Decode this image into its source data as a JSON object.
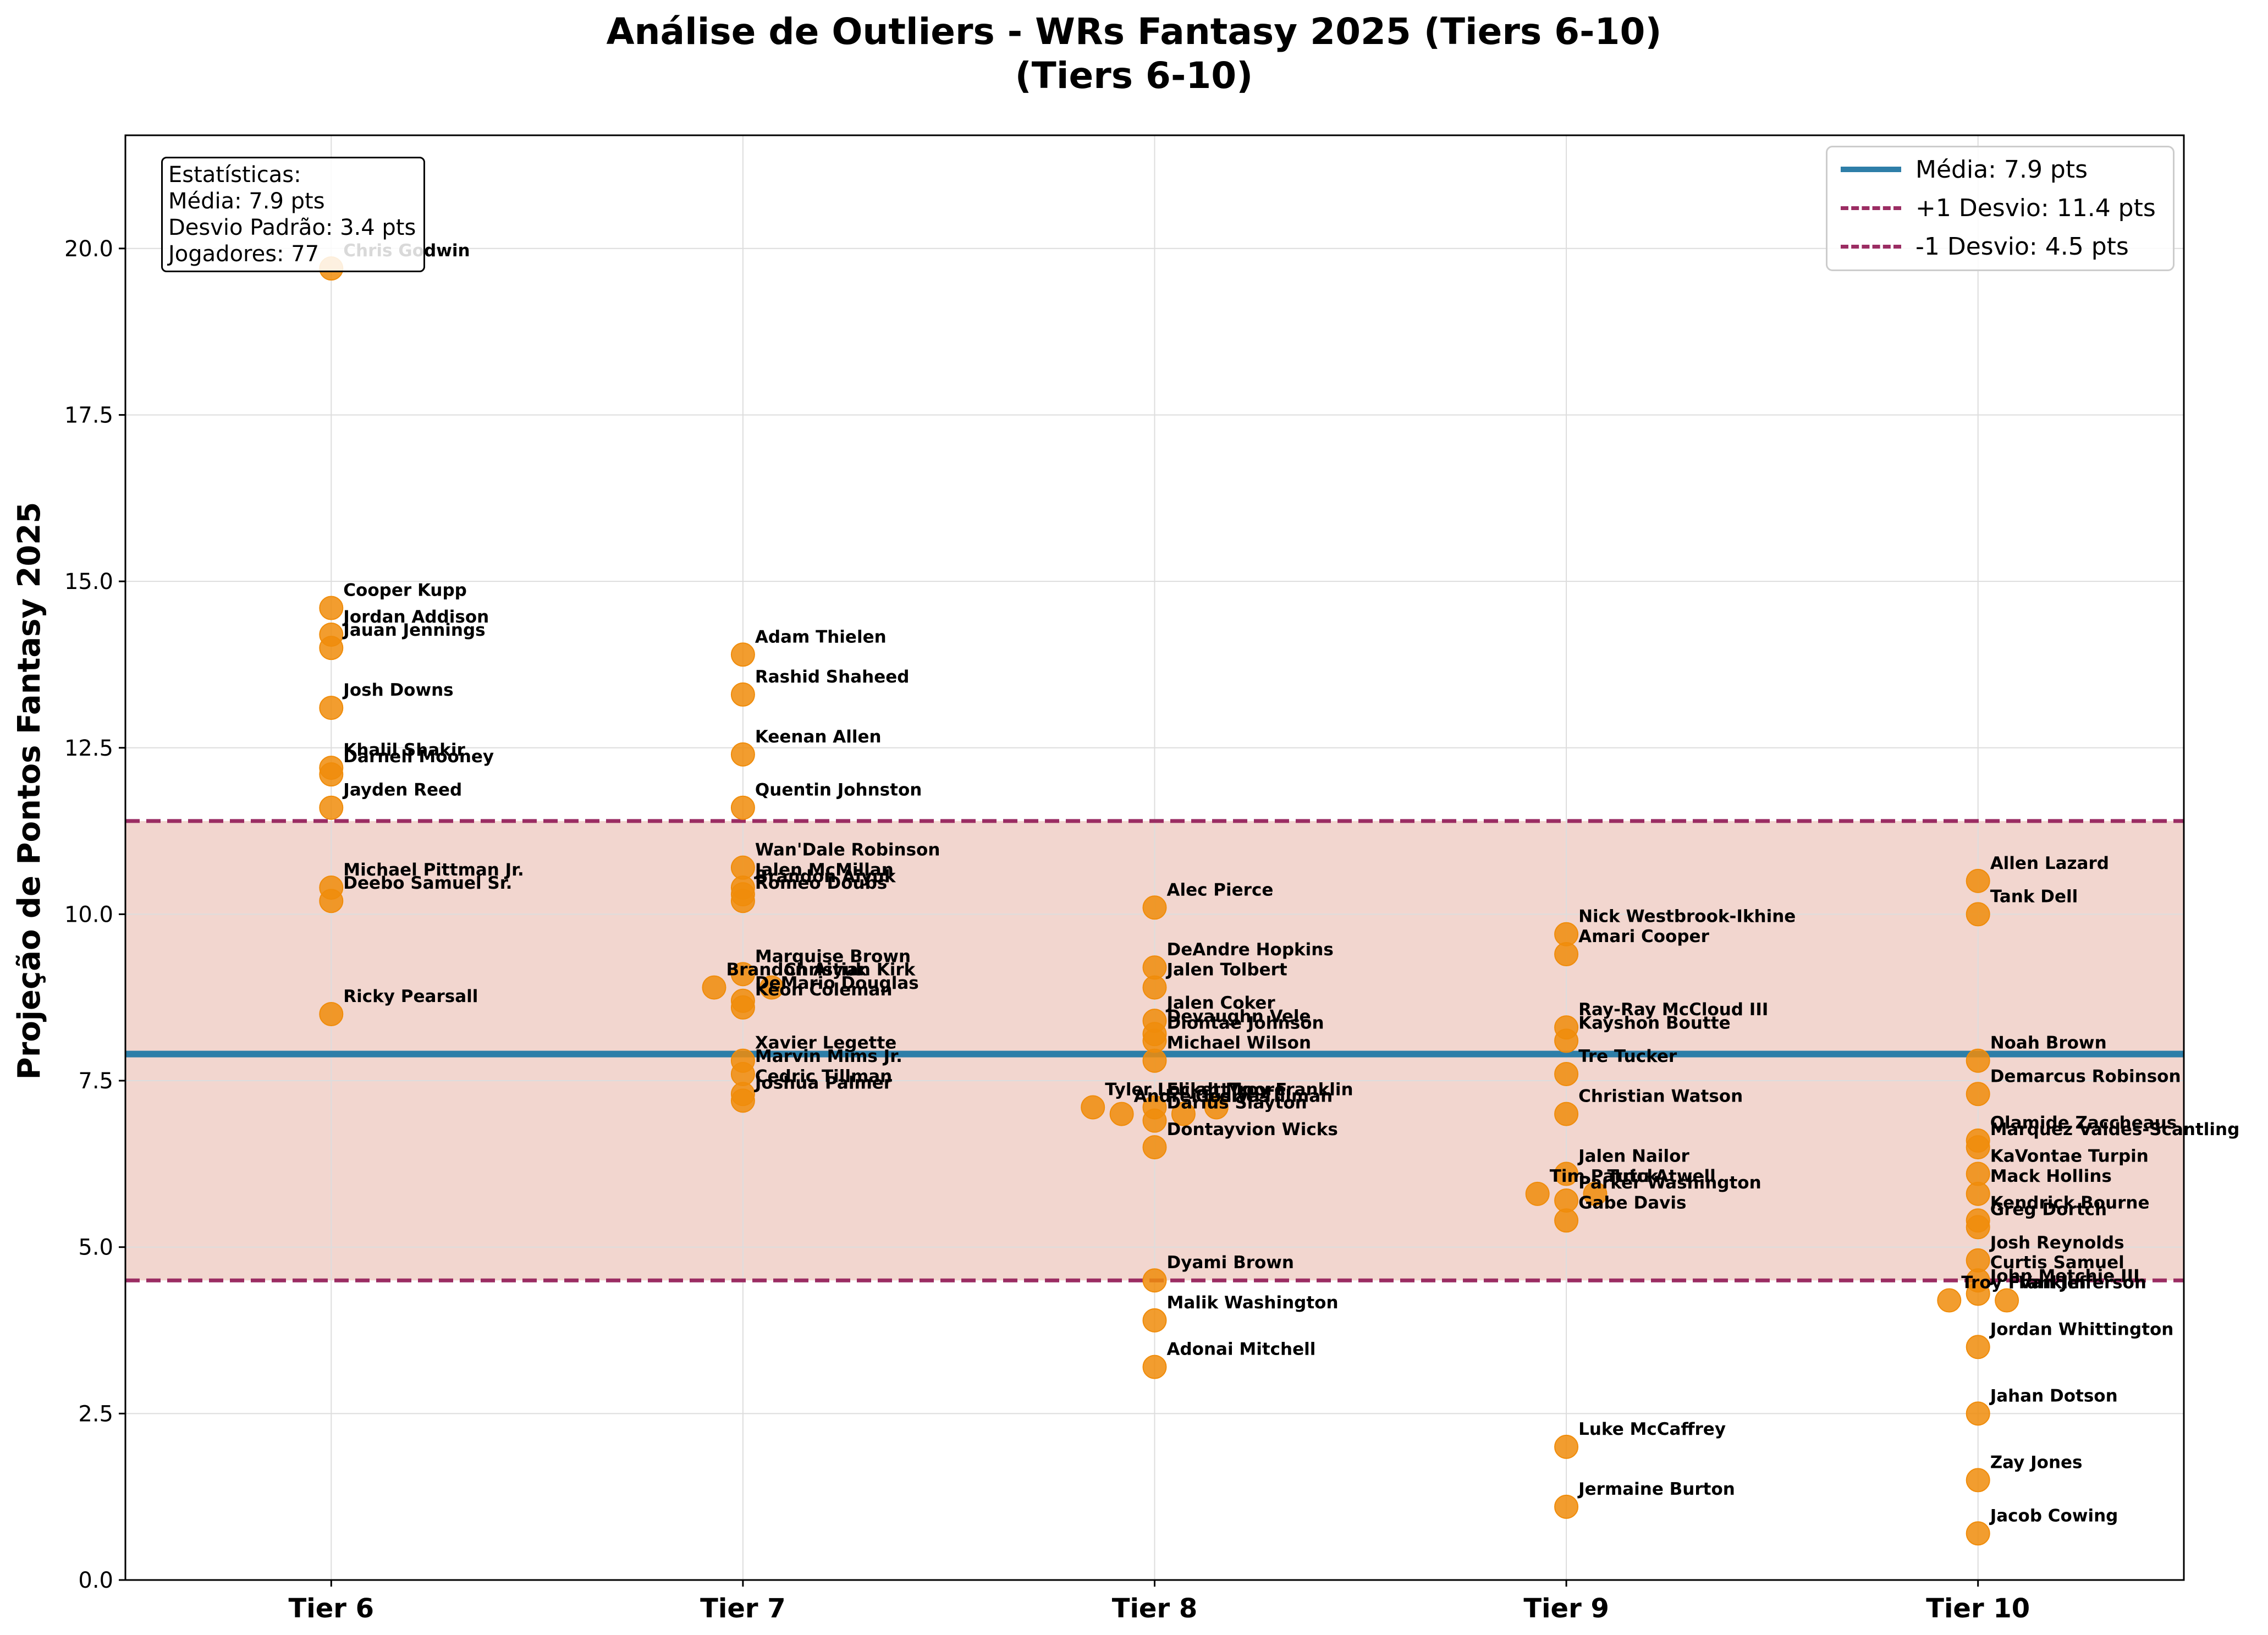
{
  "chart_data": {
    "type": "scatter",
    "title_line1": "Análise de Outliers - WRs Fantasy 2025 (Tiers 6-10)",
    "title_line2": "(Tiers 6-10)",
    "xlabel": "",
    "ylabel": "Projeção de Pontos Fantasy 2025",
    "categories": [
      "Tier 6",
      "Tier 7",
      "Tier 8",
      "Tier 9",
      "Tier 10"
    ],
    "ylim": [
      0,
      21.7
    ],
    "yticks": [
      "0.0",
      "2.5",
      "5.0",
      "7.5",
      "10.0",
      "12.5",
      "15.0",
      "17.5",
      "20.0"
    ],
    "grid": true,
    "legend_position": "top-right",
    "colors": {
      "points": "#f08c0a",
      "mean_line": "#2e7ea8",
      "sd_lines": "#9b2d63",
      "band": "#e8b4a8"
    },
    "reference_lines": {
      "mean": 7.9,
      "plus_1sd": 11.4,
      "minus_1sd": 4.5
    },
    "legend": [
      "Média: 7.9 pts",
      "+1 Desvio: 11.4 pts",
      "-1 Desvio: 4.5 pts"
    ],
    "stats": {
      "heading": "Estatísticas:",
      "mean": "Média: 7.9 pts",
      "sd": "Desvio Padrão: 3.4 pts",
      "players": "Jogadores: 77"
    },
    "points": [
      {
        "tier": 6,
        "x": 6,
        "y": 19.7,
        "name": "Chris Godwin"
      },
      {
        "tier": 6,
        "x": 6,
        "y": 14.6,
        "name": "Cooper Kupp"
      },
      {
        "tier": 6,
        "x": 6,
        "y": 14.2,
        "name": "Jordan Addison"
      },
      {
        "tier": 6,
        "x": 6,
        "y": 14.0,
        "name": "Jauan Jennings"
      },
      {
        "tier": 6,
        "x": 6,
        "y": 13.1,
        "name": "Josh Downs"
      },
      {
        "tier": 6,
        "x": 6,
        "y": 12.2,
        "name": "Khalil Shakir"
      },
      {
        "tier": 6,
        "x": 6,
        "y": 12.1,
        "name": "Darnell Mooney"
      },
      {
        "tier": 6,
        "x": 6,
        "y": 11.6,
        "name": "Jayden Reed"
      },
      {
        "tier": 6,
        "x": 6,
        "y": 10.4,
        "name": "Michael Pittman Jr."
      },
      {
        "tier": 6,
        "x": 6,
        "y": 10.2,
        "name": "Deebo Samuel Sr."
      },
      {
        "tier": 6,
        "x": 6,
        "y": 8.5,
        "name": "Ricky Pearsall"
      },
      {
        "tier": 7,
        "x": 7,
        "y": 13.9,
        "name": "Adam Thielen"
      },
      {
        "tier": 7,
        "x": 7,
        "y": 13.3,
        "name": "Rashid Shaheed"
      },
      {
        "tier": 7,
        "x": 7,
        "y": 12.4,
        "name": "Keenan Allen"
      },
      {
        "tier": 7,
        "x": 7,
        "y": 11.6,
        "name": "Quentin Johnston"
      },
      {
        "tier": 7,
        "x": 7,
        "y": 10.7,
        "name": "Wan'Dale Robinson"
      },
      {
        "tier": 7,
        "x": 7,
        "y": 10.4,
        "name": "Jalen McMillan"
      },
      {
        "tier": 7,
        "x": 7,
        "y": 10.3,
        "name": "Brandon Aiyuk"
      },
      {
        "tier": 7,
        "x": 7,
        "y": 10.2,
        "name": "Romeo Doubs"
      },
      {
        "tier": 7,
        "x": 7,
        "y": 9.1,
        "name": "Marquise Brown"
      },
      {
        "tier": 7,
        "x": 6.93,
        "y": 8.9,
        "name": "Brandon Aiyuk"
      },
      {
        "tier": 7,
        "x": 7.07,
        "y": 8.9,
        "name": "Christian Kirk"
      },
      {
        "tier": 7,
        "x": 7,
        "y": 8.7,
        "name": "DeMario Douglas"
      },
      {
        "tier": 7,
        "x": 7,
        "y": 8.6,
        "name": "Keon Coleman"
      },
      {
        "tier": 7,
        "x": 7,
        "y": 7.8,
        "name": "Xavier Legette"
      },
      {
        "tier": 7,
        "x": 7,
        "y": 7.6,
        "name": "Marvin Mims Jr."
      },
      {
        "tier": 7,
        "x": 7,
        "y": 7.3,
        "name": "Cedric Tillman"
      },
      {
        "tier": 7,
        "x": 7,
        "y": 7.2,
        "name": "Joshua Palmer"
      },
      {
        "tier": 8,
        "x": 8,
        "y": 10.1,
        "name": "Alec Pierce"
      },
      {
        "tier": 8,
        "x": 8,
        "y": 9.2,
        "name": "DeAndre Hopkins"
      },
      {
        "tier": 8,
        "x": 8,
        "y": 8.9,
        "name": "Jalen Tolbert"
      },
      {
        "tier": 8,
        "x": 8,
        "y": 8.4,
        "name": "Jalen Coker"
      },
      {
        "tier": 8,
        "x": 8,
        "y": 8.2,
        "name": "Devaughn Vele"
      },
      {
        "tier": 8,
        "x": 8,
        "y": 8.1,
        "name": "Diontae Johnson"
      },
      {
        "tier": 8,
        "x": 8,
        "y": 7.8,
        "name": "Michael Wilson"
      },
      {
        "tier": 8,
        "x": 7.85,
        "y": 7.1,
        "name": "Tyler Lockett"
      },
      {
        "tier": 8,
        "x": 7.92,
        "y": 7.0,
        "name": "Andrei Iosivas"
      },
      {
        "tier": 8,
        "x": 8,
        "y": 7.1,
        "name": "Elijah Moore"
      },
      {
        "tier": 8,
        "x": 8.07,
        "y": 7.0,
        "name": "Cedric Tillman"
      },
      {
        "tier": 8,
        "x": 8.15,
        "y": 7.1,
        "name": "Troy Franklin"
      },
      {
        "tier": 8,
        "x": 8,
        "y": 6.9,
        "name": "Darius Slayton"
      },
      {
        "tier": 8,
        "x": 8,
        "y": 6.5,
        "name": "Dontayvion Wicks"
      },
      {
        "tier": 8,
        "x": 8,
        "y": 4.5,
        "name": "Dyami Brown"
      },
      {
        "tier": 8,
        "x": 8,
        "y": 3.9,
        "name": "Malik Washington"
      },
      {
        "tier": 8,
        "x": 8,
        "y": 3.2,
        "name": "Adonai Mitchell"
      },
      {
        "tier": 9,
        "x": 9,
        "y": 9.7,
        "name": "Nick Westbrook-Ikhine"
      },
      {
        "tier": 9,
        "x": 9,
        "y": 9.4,
        "name": "Amari Cooper"
      },
      {
        "tier": 9,
        "x": 9,
        "y": 8.3,
        "name": "Ray-Ray McCloud III"
      },
      {
        "tier": 9,
        "x": 9,
        "y": 8.1,
        "name": "Kayshon Boutte"
      },
      {
        "tier": 9,
        "x": 9,
        "y": 7.6,
        "name": "Tre Tucker"
      },
      {
        "tier": 9,
        "x": 9,
        "y": 7.0,
        "name": "Christian Watson"
      },
      {
        "tier": 9,
        "x": 9,
        "y": 6.1,
        "name": "Jalen Nailor"
      },
      {
        "tier": 9,
        "x": 8.93,
        "y": 5.8,
        "name": "Tim Patrick"
      },
      {
        "tier": 9,
        "x": 9.07,
        "y": 5.8,
        "name": "Tutu Atwell"
      },
      {
        "tier": 9,
        "x": 9,
        "y": 5.7,
        "name": "Parker Washington"
      },
      {
        "tier": 9,
        "x": 9,
        "y": 5.4,
        "name": "Gabe Davis"
      },
      {
        "tier": 9,
        "x": 9,
        "y": 2.0,
        "name": "Luke McCaffrey"
      },
      {
        "tier": 9,
        "x": 9,
        "y": 1.1,
        "name": "Jermaine Burton"
      },
      {
        "tier": 10,
        "x": 10,
        "y": 10.5,
        "name": "Allen Lazard"
      },
      {
        "tier": 10,
        "x": 10,
        "y": 10.0,
        "name": "Tank Dell"
      },
      {
        "tier": 10,
        "x": 10,
        "y": 7.8,
        "name": "Noah Brown"
      },
      {
        "tier": 10,
        "x": 10,
        "y": 7.3,
        "name": "Demarcus Robinson"
      },
      {
        "tier": 10,
        "x": 10,
        "y": 6.6,
        "name": "Olamide Zaccheaus"
      },
      {
        "tier": 10,
        "x": 10,
        "y": 6.5,
        "name": "Marquez Valdes-Scantling"
      },
      {
        "tier": 10,
        "x": 10,
        "y": 6.1,
        "name": "KaVontae Turpin"
      },
      {
        "tier": 10,
        "x": 10,
        "y": 5.8,
        "name": "Mack Hollins"
      },
      {
        "tier": 10,
        "x": 10,
        "y": 5.4,
        "name": "Kendrick Bourne"
      },
      {
        "tier": 10,
        "x": 10,
        "y": 5.3,
        "name": "Greg Dortch"
      },
      {
        "tier": 10,
        "x": 10,
        "y": 4.8,
        "name": "Josh Reynolds"
      },
      {
        "tier": 10,
        "x": 10,
        "y": 4.5,
        "name": "Curtis Samuel"
      },
      {
        "tier": 10,
        "x": 10,
        "y": 4.3,
        "name": "John Metchie III"
      },
      {
        "tier": 10,
        "x": 9.93,
        "y": 4.2,
        "name": "Troy Franklin"
      },
      {
        "tier": 10,
        "x": 10.07,
        "y": 4.2,
        "name": "Van Jefferson"
      },
      {
        "tier": 10,
        "x": 10,
        "y": 3.5,
        "name": "Jordan Whittington"
      },
      {
        "tier": 10,
        "x": 10,
        "y": 2.5,
        "name": "Jahan Dotson"
      },
      {
        "tier": 10,
        "x": 10,
        "y": 1.5,
        "name": "Zay Jones"
      },
      {
        "tier": 10,
        "x": 10,
        "y": 0.7,
        "name": "Jacob Cowing"
      }
    ]
  }
}
